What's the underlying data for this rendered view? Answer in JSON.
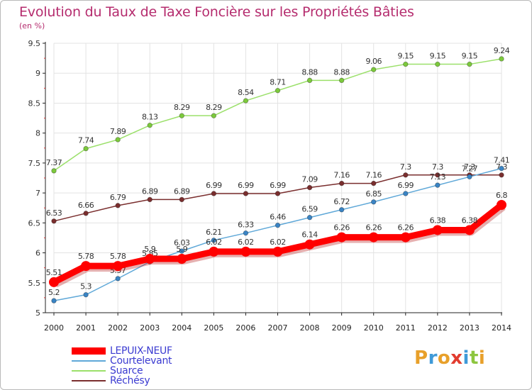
{
  "header": {
    "title": "Evolution du Taux de Taxe Foncière sur les Propriétés Bâties",
    "subtitle": "(en %)"
  },
  "logo": {
    "text": "Proxiti",
    "letters": [
      {
        "char": "P",
        "color": "#e8a02a"
      },
      {
        "char": "r",
        "color": "#3f9ad8"
      },
      {
        "char": "o",
        "color": "#e8a02a"
      },
      {
        "char": "x",
        "color": "#e23c2f"
      },
      {
        "char": "i",
        "color": "#3f9ad8"
      },
      {
        "char": "t",
        "color": "#8dc63f"
      },
      {
        "char": "i",
        "color": "#e8a02a"
      }
    ]
  },
  "legend": [
    {
      "label": "LEPUIX-NEUF",
      "color": "#ff0000"
    },
    {
      "label": "Courtelevant",
      "color": "#5fa8d8"
    },
    {
      "label": "Suarce",
      "color": "#9be06a"
    },
    {
      "label": "Réchésy",
      "color": "#7a2e2e"
    }
  ],
  "chart_data": {
    "type": "line",
    "title": "Evolution du Taux de Taxe Foncière sur les Propriétés Bâties",
    "subtitle": "(en %)",
    "x": [
      2000,
      2001,
      2002,
      2003,
      2004,
      2005,
      2006,
      2007,
      2008,
      2009,
      2010,
      2011,
      2012,
      2013,
      2014
    ],
    "ylim": [
      5,
      9.5
    ],
    "yticks": [
      5,
      5.5,
      6,
      6.5,
      7,
      7.5,
      8,
      8.5,
      9,
      9.5
    ],
    "ytick_labels": [
      "5",
      "5.5",
      "6",
      "6.5",
      "7",
      "7.5",
      "8",
      "8.5",
      "9",
      "9.5"
    ],
    "grid": true,
    "legend_position": "bottom-left",
    "series": [
      {
        "name": "Suarce",
        "color": "#9be06a",
        "marker_color": "#7cc93c",
        "values": [
          7.37,
          7.74,
          7.89,
          8.13,
          8.29,
          8.29,
          8.54,
          8.71,
          8.88,
          8.88,
          9.06,
          9.15,
          9.15,
          9.15,
          9.24
        ],
        "labels": [
          "7.37",
          "7.74",
          "7.89",
          "8.13",
          "8.29",
          "8.29",
          "8.54",
          "8.71",
          "8.88",
          "8.88",
          "9.06",
          "9.15",
          "9.15",
          "9.15",
          "9.24"
        ]
      },
      {
        "name": "Réchésy",
        "color": "#7a2e2e",
        "marker_color": "#7a2e2e",
        "values": [
          6.53,
          6.66,
          6.79,
          6.89,
          6.89,
          6.99,
          6.99,
          6.99,
          7.09,
          7.16,
          7.16,
          7.3,
          7.3,
          7.3,
          7.3
        ],
        "labels": [
          "6.53",
          "6.66",
          "6.79",
          "6.89",
          "6.89",
          "6.99",
          "6.99",
          "6.99",
          "7.09",
          "7.16",
          "7.16",
          "7.3",
          "7.3",
          "7.3",
          "7.3"
        ]
      },
      {
        "name": "Courtelevant",
        "color": "#5fa8d8",
        "marker_color": "#3a84c4",
        "values": [
          5.2,
          5.3,
          5.57,
          5.85,
          6.03,
          6.21,
          6.33,
          6.46,
          6.59,
          6.72,
          6.85,
          6.99,
          7.13,
          7.27,
          7.41
        ],
        "labels": [
          "5.2",
          "5.3",
          "5.57",
          "5.85",
          "6.03",
          "6.21",
          "6.33",
          "6.46",
          "6.59",
          "6.72",
          "6.85",
          "6.99",
          "7.13",
          "7.27",
          "7.41"
        ]
      },
      {
        "name": "LEPUIX-NEUF",
        "color": "#ff0000",
        "marker_color": "#ff0000",
        "values": [
          5.51,
          5.78,
          5.78,
          5.9,
          5.9,
          6.02,
          6.02,
          6.02,
          6.14,
          6.26,
          6.26,
          6.26,
          6.38,
          6.38,
          6.8
        ],
        "labels": [
          "5.51",
          "5.78",
          "5.78",
          "5.9",
          "5.9",
          "6.02",
          "6.02",
          "6.02",
          "6.14",
          "6.26",
          "6.26",
          "6.26",
          "6.38",
          "6.38",
          "6.8"
        ]
      }
    ]
  }
}
